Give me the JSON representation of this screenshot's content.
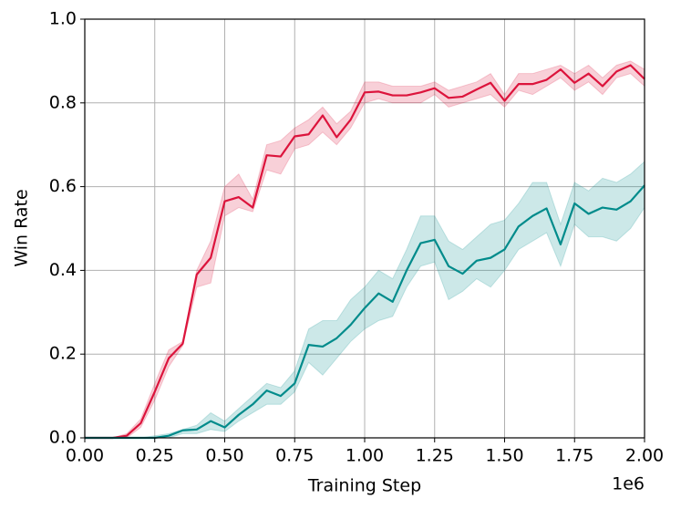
{
  "chart_data": {
    "type": "line",
    "x_label": "Training Step",
    "y_label": "Win Rate",
    "x_offset_label": "1e6",
    "x": [
      0,
      0.05,
      0.1,
      0.15,
      0.2,
      0.25,
      0.3,
      0.35,
      0.4,
      0.45,
      0.5,
      0.55,
      0.6,
      0.65,
      0.7,
      0.75,
      0.8,
      0.85,
      0.9,
      0.95,
      1.0,
      1.05,
      1.1,
      1.15,
      1.2,
      1.25,
      1.3,
      1.35,
      1.4,
      1.45,
      1.5,
      1.55,
      1.6,
      1.65,
      1.7,
      1.75,
      1.8,
      1.85,
      1.9,
      1.95,
      2.0
    ],
    "series": [
      {
        "color": "#dc143c",
        "values": [
          0,
          0,
          0,
          0.005,
          0.035,
          0.11,
          0.19,
          0.225,
          0.39,
          0.43,
          0.565,
          0.575,
          0.55,
          0.675,
          0.672,
          0.72,
          0.725,
          0.77,
          0.718,
          0.76,
          0.825,
          0.827,
          0.818,
          0.818,
          0.825,
          0.835,
          0.812,
          0.815,
          0.832,
          0.848,
          0.805,
          0.845,
          0.845,
          0.855,
          0.88,
          0.848,
          0.87,
          0.84,
          0.875,
          0.89,
          0.857
        ],
        "lower": [
          0,
          0,
          0,
          0,
          0.025,
          0.09,
          0.17,
          0.22,
          0.36,
          0.37,
          0.53,
          0.55,
          0.54,
          0.64,
          0.63,
          0.69,
          0.7,
          0.73,
          0.7,
          0.74,
          0.8,
          0.81,
          0.8,
          0.8,
          0.8,
          0.82,
          0.79,
          0.8,
          0.81,
          0.82,
          0.79,
          0.83,
          0.82,
          0.84,
          0.86,
          0.83,
          0.85,
          0.82,
          0.86,
          0.87,
          0.84
        ],
        "upper": [
          0,
          0,
          0,
          0.01,
          0.045,
          0.13,
          0.21,
          0.23,
          0.4,
          0.47,
          0.6,
          0.63,
          0.57,
          0.7,
          0.71,
          0.74,
          0.76,
          0.79,
          0.75,
          0.78,
          0.85,
          0.85,
          0.84,
          0.84,
          0.84,
          0.85,
          0.83,
          0.84,
          0.85,
          0.87,
          0.82,
          0.87,
          0.87,
          0.88,
          0.89,
          0.87,
          0.89,
          0.86,
          0.89,
          0.9,
          0.88
        ]
      },
      {
        "color": "#008b8b",
        "values": [
          0,
          0,
          0,
          0,
          0,
          0,
          0.005,
          0.018,
          0.02,
          0.04,
          0.025,
          0.055,
          0.08,
          0.113,
          0.1,
          0.13,
          0.222,
          0.218,
          0.238,
          0.27,
          0.31,
          0.345,
          0.325,
          0.4,
          0.465,
          0.473,
          0.41,
          0.392,
          0.423,
          0.43,
          0.45,
          0.505,
          0.53,
          0.548,
          0.462,
          0.56,
          0.535,
          0.55,
          0.545,
          0.565,
          0.603
        ],
        "lower": [
          0,
          0,
          0,
          0,
          0,
          0,
          0,
          0.01,
          0.01,
          0.02,
          0.015,
          0.04,
          0.06,
          0.08,
          0.08,
          0.11,
          0.18,
          0.15,
          0.19,
          0.23,
          0.26,
          0.28,
          0.29,
          0.36,
          0.41,
          0.42,
          0.33,
          0.35,
          0.38,
          0.36,
          0.4,
          0.45,
          0.47,
          0.49,
          0.41,
          0.51,
          0.48,
          0.48,
          0.47,
          0.5,
          0.55
        ],
        "upper": [
          0,
          0,
          0,
          0,
          0,
          0.005,
          0.01,
          0.02,
          0.03,
          0.06,
          0.04,
          0.07,
          0.1,
          0.13,
          0.12,
          0.16,
          0.26,
          0.28,
          0.28,
          0.33,
          0.36,
          0.4,
          0.38,
          0.45,
          0.53,
          0.53,
          0.47,
          0.45,
          0.48,
          0.51,
          0.52,
          0.56,
          0.61,
          0.61,
          0.51,
          0.61,
          0.59,
          0.62,
          0.61,
          0.63,
          0.66
        ]
      }
    ],
    "xlim": [
      0,
      2.0
    ],
    "ylim": [
      0,
      1.0
    ],
    "xticks": [
      {
        "value": 0,
        "label": "0.00"
      },
      {
        "value": 0.25,
        "label": "0.25"
      },
      {
        "value": 0.5,
        "label": "0.50"
      },
      {
        "value": 0.75,
        "label": "0.75"
      },
      {
        "value": 1.0,
        "label": "1.00"
      },
      {
        "value": 1.25,
        "label": "1.25"
      },
      {
        "value": 1.5,
        "label": "1.50"
      },
      {
        "value": 1.75,
        "label": "1.75"
      },
      {
        "value": 2.0,
        "label": "2.00"
      }
    ],
    "yticks": [
      {
        "value": 0,
        "label": "0.0"
      },
      {
        "value": 0.2,
        "label": "0.2"
      },
      {
        "value": 0.4,
        "label": "0.4"
      },
      {
        "value": 0.6,
        "label": "0.6"
      },
      {
        "value": 0.8,
        "label": "0.8"
      },
      {
        "value": 1.0,
        "label": "1.0"
      }
    ],
    "grid": true,
    "band_opacity": 0.2
  }
}
